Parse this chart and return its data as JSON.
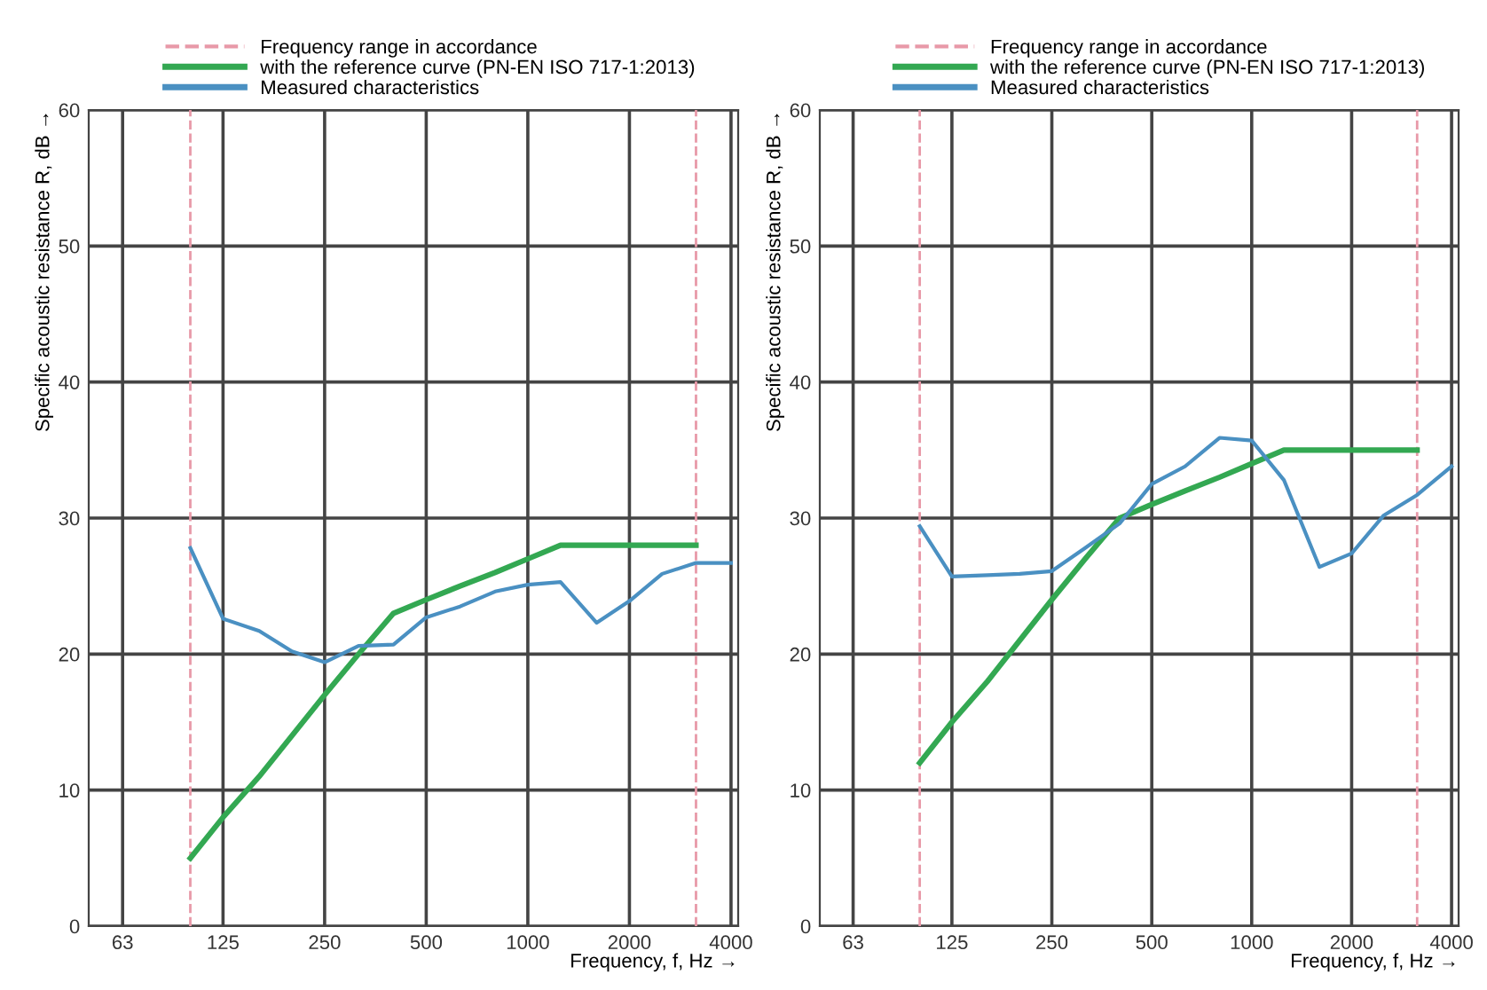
{
  "chart_data": [
    {
      "type": "line",
      "xlabel": "Frequency, f, Hz →",
      "ylabel": "Specific acoustic resistance R, dB →",
      "log": "x",
      "grid": true,
      "legend": "top",
      "x": [
        100,
        125,
        160,
        200,
        250,
        315,
        400,
        500,
        630,
        800,
        1000,
        1250,
        1600,
        2000,
        2500,
        3150,
        4000
      ],
      "series": [
        {
          "name": "with the reference curve (PN-EN ISO 717-1:2013)",
          "color": "#33a852",
          "values": [
            5,
            8,
            11,
            14,
            17,
            20,
            23,
            24,
            25,
            26,
            27,
            28,
            28,
            28,
            28,
            28,
            null
          ]
        },
        {
          "name": "Measured characteristics",
          "color": "#4a90c2",
          "values": [
            27.8,
            22.6,
            21.7,
            20.2,
            19.4,
            20.6,
            20.7,
            22.7,
            23.5,
            24.6,
            25.1,
            25.3,
            22.3,
            23.9,
            25.9,
            26.7,
            26.7
          ]
        }
      ],
      "ref_lines": [
        {
          "axis": "x",
          "value": 100,
          "label": "Frequency range in accordance",
          "color": "#e899a8",
          "line_style": "dashed"
        },
        {
          "axis": "x",
          "value": 3150,
          "color": "#e899a8",
          "line_style": "dashed"
        }
      ],
      "xlim": [
        50,
        4200
      ],
      "ylim": [
        0,
        60
      ],
      "xticks": [
        63,
        125,
        250,
        500,
        1000,
        2000,
        4000
      ],
      "yticks": [
        0,
        10,
        20,
        30,
        40,
        50,
        60
      ]
    },
    {
      "type": "line",
      "xlabel": "Frequency, f, Hz →",
      "ylabel": "Specific acoustic resistance R, dB →",
      "log": "x",
      "grid": true,
      "legend": "top",
      "x": [
        100,
        125,
        160,
        200,
        250,
        315,
        400,
        500,
        630,
        800,
        1000,
        1250,
        1600,
        2000,
        2500,
        3150,
        4000
      ],
      "series": [
        {
          "name": "with the reference curve (PN-EN ISO 717-1:2013)",
          "color": "#33a852",
          "values": [
            12,
            15,
            18,
            21,
            24,
            27,
            30,
            31,
            32,
            33,
            34,
            35,
            35,
            35,
            35,
            35,
            null
          ]
        },
        {
          "name": "Measured characteristics",
          "color": "#4a90c2",
          "values": [
            29.4,
            25.7,
            25.8,
            25.9,
            26.1,
            27.8,
            29.6,
            32.5,
            33.8,
            35.9,
            35.7,
            32.8,
            26.4,
            27.4,
            30.2,
            31.7,
            33.8
          ]
        }
      ],
      "ref_lines": [
        {
          "axis": "x",
          "value": 100,
          "label": "Frequency range in accordance",
          "color": "#e899a8",
          "line_style": "dashed"
        },
        {
          "axis": "x",
          "value": 3150,
          "color": "#e899a8",
          "line_style": "dashed"
        }
      ],
      "xlim": [
        50,
        4200
      ],
      "ylim": [
        0,
        60
      ],
      "xticks": [
        63,
        125,
        250,
        500,
        1000,
        2000,
        4000
      ],
      "yticks": [
        0,
        10,
        20,
        30,
        40,
        50,
        60
      ]
    }
  ]
}
